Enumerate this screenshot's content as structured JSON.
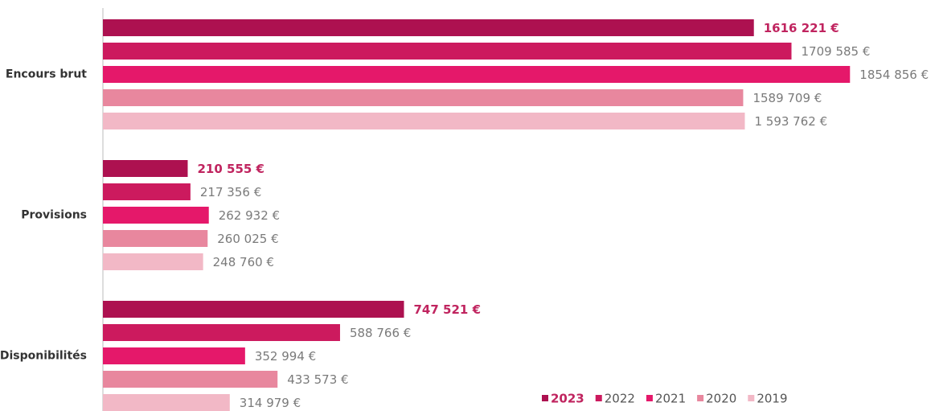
{
  "chart_data": {
    "type": "bar",
    "orientation": "horizontal",
    "categories": [
      "Encours brut",
      "Provisions",
      "Disponibilités"
    ],
    "xlim": [
      0,
      2000000
    ],
    "legend": "bottom-right",
    "series": [
      {
        "name": "2023",
        "color": "#ad1150",
        "values": [
          1616221,
          210555,
          747521
        ],
        "value_labels": [
          "1616 221 €",
          "210 555 €",
          "747 521 €"
        ]
      },
      {
        "name": "2022",
        "color": "#cc1a5e",
        "values": [
          1709585,
          217356,
          588766
        ],
        "value_labels": [
          "1709 585 €",
          "217 356 €",
          "588 766 €"
        ]
      },
      {
        "name": "2021",
        "color": "#e5186a",
        "values": [
          1854856,
          262932,
          352994
        ],
        "value_labels": [
          "1854 856 €",
          "262 932 €",
          "352 994 €"
        ]
      },
      {
        "name": "2020",
        "color": "#e8879e",
        "values": [
          1589709,
          260025,
          433573
        ],
        "value_labels": [
          "1589 709 €",
          "260 025 €",
          "433 573 €"
        ]
      },
      {
        "name": "2019",
        "color": "#f2b8c6",
        "values": [
          1593762,
          248760,
          314979
        ],
        "value_labels": [
          "1 593 762 €",
          "248 760 €",
          "314 979 €"
        ]
      }
    ]
  }
}
